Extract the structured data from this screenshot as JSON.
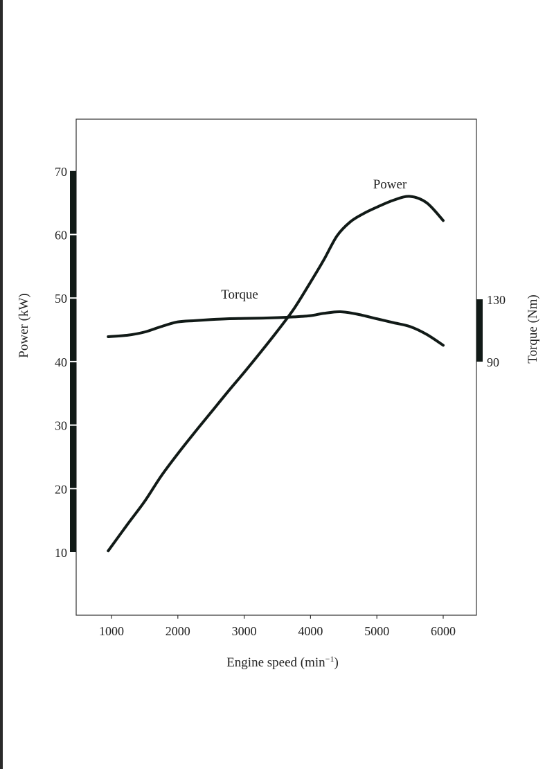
{
  "chart_data": {
    "type": "line",
    "xlabel": "Engine speed (min",
    "xlabel_sup": "−1",
    "xlabel_close": ")",
    "ylabel_left": "Power  (kW)",
    "ylabel_right": "Torque (Nm)",
    "xlim": [
      500,
      6500
    ],
    "ylim_left": [
      2,
      80
    ],
    "x_ticks": [
      1000,
      2000,
      3000,
      4000,
      5000,
      6000
    ],
    "y_left_ticks": [
      10,
      20,
      30,
      40,
      50,
      60,
      70
    ],
    "y_right_ticks": [
      90,
      130
    ],
    "grid": false,
    "colors": {
      "line": "#111a17",
      "axis_bar": "#111a17",
      "frame": "#333333"
    },
    "series": [
      {
        "name": "Power",
        "axis": "left",
        "x": [
          950,
          1250,
          1500,
          1750,
          2000,
          2250,
          2500,
          2750,
          3000,
          3250,
          3500,
          3750,
          4000,
          4200,
          4400,
          4600,
          4800,
          5000,
          5250,
          5500,
          5750,
          6000
        ],
        "y": [
          10.2,
          14.5,
          18,
          22,
          25.5,
          28.8,
          32,
          35.2,
          38.3,
          41.5,
          44.8,
          48.3,
          52.5,
          56,
          59.8,
          62,
          63.3,
          64.3,
          65.4,
          66,
          65,
          62.2
        ]
      },
      {
        "name": "Torque",
        "axis": "right",
        "x": [
          950,
          1250,
          1500,
          1750,
          2000,
          2250,
          2500,
          2750,
          3000,
          3250,
          3500,
          3750,
          4000,
          4200,
          4450,
          4700,
          5000,
          5250,
          5500,
          5750,
          6000
        ],
        "y": [
          106,
          107,
          109,
          112.5,
          115.5,
          116.3,
          117,
          117.5,
          117.7,
          117.9,
          118.2,
          118.7,
          119.5,
          121,
          122,
          120.5,
          117.5,
          115,
          112.5,
          107.5,
          100.5
        ]
      }
    ]
  }
}
